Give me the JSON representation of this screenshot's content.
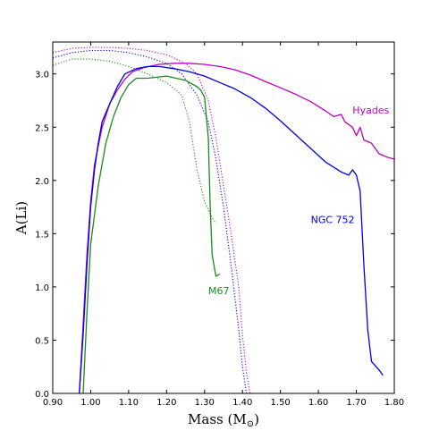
{
  "chart_data": {
    "type": "line",
    "xlabel": "Mass (M",
    "xlabel_symbol": "⊙",
    "xlabel_close": ")",
    "ylabel": "A(Li)",
    "xlim": [
      0.9,
      1.8
    ],
    "ylim": [
      0.0,
      3.3
    ],
    "grid": false,
    "x_ticks": [
      "0.90",
      "1.00",
      "1.10",
      "1.20",
      "1.30",
      "1.40",
      "1.50",
      "1.60",
      "1.70",
      "1.80"
    ],
    "y_ticks": [
      "0.0",
      "0.5",
      "1.0",
      "1.5",
      "2.0",
      "2.5",
      "3.0"
    ],
    "series": [
      {
        "name": "Hyades",
        "color": "#c000c0",
        "style": "solid",
        "points": [
          [
            0.97,
            0.0
          ],
          [
            0.98,
            0.65
          ],
          [
            0.99,
            1.3
          ],
          [
            1.0,
            1.8
          ],
          [
            1.01,
            2.15
          ],
          [
            1.03,
            2.5
          ],
          [
            1.05,
            2.72
          ],
          [
            1.07,
            2.85
          ],
          [
            1.09,
            2.95
          ],
          [
            1.11,
            3.02
          ],
          [
            1.14,
            3.06
          ],
          [
            1.18,
            3.09
          ],
          [
            1.22,
            3.1
          ],
          [
            1.26,
            3.1
          ],
          [
            1.3,
            3.09
          ],
          [
            1.34,
            3.07
          ],
          [
            1.38,
            3.04
          ],
          [
            1.42,
            2.99
          ],
          [
            1.46,
            2.93
          ],
          [
            1.5,
            2.87
          ],
          [
            1.54,
            2.81
          ],
          [
            1.58,
            2.74
          ],
          [
            1.62,
            2.65
          ],
          [
            1.64,
            2.6
          ],
          [
            1.66,
            2.62
          ],
          [
            1.67,
            2.55
          ],
          [
            1.69,
            2.5
          ],
          [
            1.7,
            2.42
          ],
          [
            1.71,
            2.5
          ],
          [
            1.72,
            2.38
          ],
          [
            1.74,
            2.35
          ],
          [
            1.76,
            2.25
          ],
          [
            1.78,
            2.22
          ],
          [
            1.8,
            2.2
          ]
        ]
      },
      {
        "name": "Hyades",
        "color": "#c000c0",
        "style": "dotted",
        "points": [
          [
            0.9,
            3.2
          ],
          [
            0.95,
            3.24
          ],
          [
            1.0,
            3.25
          ],
          [
            1.05,
            3.25
          ],
          [
            1.1,
            3.24
          ],
          [
            1.15,
            3.22
          ],
          [
            1.2,
            3.18
          ],
          [
            1.25,
            3.1
          ],
          [
            1.28,
            3.0
          ],
          [
            1.31,
            2.75
          ],
          [
            1.33,
            2.4
          ],
          [
            1.35,
            1.95
          ],
          [
            1.37,
            1.5
          ],
          [
            1.39,
            1.0
          ],
          [
            1.4,
            0.55
          ],
          [
            1.41,
            0.2
          ],
          [
            1.42,
            0.0
          ]
        ]
      },
      {
        "name": "NGC 752",
        "color": "#0000e0",
        "style": "solid",
        "points": [
          [
            0.97,
            0.0
          ],
          [
            0.98,
            0.55
          ],
          [
            0.99,
            1.2
          ],
          [
            1.0,
            1.75
          ],
          [
            1.01,
            2.1
          ],
          [
            1.02,
            2.35
          ],
          [
            1.03,
            2.55
          ],
          [
            1.05,
            2.72
          ],
          [
            1.07,
            2.88
          ],
          [
            1.09,
            3.0
          ],
          [
            1.12,
            3.05
          ],
          [
            1.15,
            3.07
          ],
          [
            1.18,
            3.07
          ],
          [
            1.22,
            3.05
          ],
          [
            1.26,
            3.02
          ],
          [
            1.3,
            2.98
          ],
          [
            1.34,
            2.92
          ],
          [
            1.38,
            2.86
          ],
          [
            1.42,
            2.78
          ],
          [
            1.46,
            2.68
          ],
          [
            1.5,
            2.56
          ],
          [
            1.54,
            2.43
          ],
          [
            1.58,
            2.3
          ],
          [
            1.62,
            2.17
          ],
          [
            1.66,
            2.08
          ],
          [
            1.68,
            2.05
          ],
          [
            1.69,
            2.1
          ],
          [
            1.7,
            2.05
          ],
          [
            1.71,
            1.9
          ],
          [
            1.72,
            1.2
          ],
          [
            1.73,
            0.6
          ],
          [
            1.74,
            0.3
          ],
          [
            1.76,
            0.22
          ],
          [
            1.77,
            0.17
          ]
        ]
      },
      {
        "name": "NGC 752",
        "color": "#0000e0",
        "style": "dotted",
        "points": [
          [
            0.9,
            3.15
          ],
          [
            0.95,
            3.2
          ],
          [
            1.0,
            3.22
          ],
          [
            1.05,
            3.22
          ],
          [
            1.1,
            3.2
          ],
          [
            1.15,
            3.16
          ],
          [
            1.2,
            3.1
          ],
          [
            1.24,
            3.0
          ],
          [
            1.28,
            2.8
          ],
          [
            1.31,
            2.55
          ],
          [
            1.33,
            2.2
          ],
          [
            1.35,
            1.75
          ],
          [
            1.37,
            1.2
          ],
          [
            1.39,
            0.6
          ],
          [
            1.4,
            0.25
          ],
          [
            1.41,
            0.0
          ]
        ]
      },
      {
        "name": "M67",
        "color": "#1a8a1a",
        "style": "solid",
        "points": [
          [
            0.98,
            0.0
          ],
          [
            0.99,
            0.75
          ],
          [
            1.0,
            1.4
          ],
          [
            1.02,
            1.95
          ],
          [
            1.04,
            2.35
          ],
          [
            1.06,
            2.6
          ],
          [
            1.08,
            2.78
          ],
          [
            1.1,
            2.9
          ],
          [
            1.12,
            2.96
          ],
          [
            1.15,
            2.96
          ],
          [
            1.2,
            2.98
          ],
          [
            1.25,
            2.94
          ],
          [
            1.28,
            2.88
          ],
          [
            1.29,
            2.85
          ],
          [
            1.3,
            2.78
          ],
          [
            1.31,
            2.4
          ],
          [
            1.315,
            1.75
          ],
          [
            1.32,
            1.3
          ],
          [
            1.33,
            1.1
          ],
          [
            1.34,
            1.12
          ]
        ]
      },
      {
        "name": "M67",
        "color": "#1a8a1a",
        "style": "dotted",
        "points": [
          [
            0.9,
            3.08
          ],
          [
            0.95,
            3.14
          ],
          [
            1.0,
            3.14
          ],
          [
            1.05,
            3.12
          ],
          [
            1.1,
            3.07
          ],
          [
            1.15,
            3.0
          ],
          [
            1.2,
            2.92
          ],
          [
            1.24,
            2.8
          ],
          [
            1.26,
            2.55
          ],
          [
            1.28,
            2.1
          ],
          [
            1.3,
            1.8
          ],
          [
            1.32,
            1.65
          ],
          [
            1.33,
            1.6
          ]
        ]
      }
    ],
    "annotations": [
      {
        "text": "Hyades",
        "x": 1.69,
        "y": 2.63,
        "color": "#c000c0"
      },
      {
        "text": "NGC 752",
        "x": 1.58,
        "y": 1.6,
        "color": "#0000e0"
      },
      {
        "text": "M67",
        "x": 1.31,
        "y": 0.93,
        "color": "#1a8a1a"
      }
    ]
  }
}
